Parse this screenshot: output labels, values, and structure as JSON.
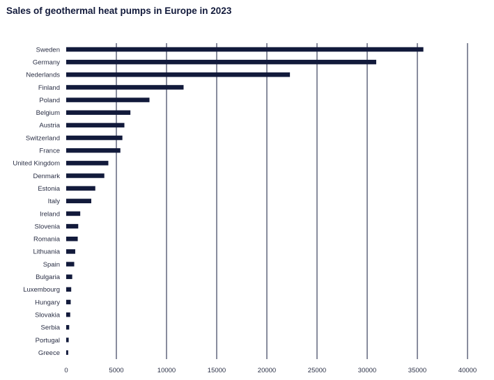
{
  "chart_data": {
    "type": "bar",
    "orientation": "horizontal",
    "title": "Sales of geothermal heat pumps in Europe in 2023",
    "xlabel": "",
    "ylabel": "",
    "xlim": [
      0,
      40000
    ],
    "xticks": [
      0,
      5000,
      10000,
      15000,
      20000,
      25000,
      30000,
      35000,
      40000
    ],
    "grid": true,
    "bar_color": "#121a3b",
    "grid_color": "#121a3b",
    "categories": [
      "Sweden",
      "Germany",
      "Nederlands",
      "Finland",
      "Poland",
      "Belgium",
      "Austria",
      "Switzerland",
      "France",
      "United Kingdom",
      "Denmark",
      "Estonia",
      "Italy",
      "Ireland",
      "Slovenia",
      "Romania",
      "Lithuania",
      "Spain",
      "Bulgaria",
      "Luxembourg",
      "Hungary",
      "Slovakia",
      "Serbia",
      "Portugal",
      "Greece"
    ],
    "values": [
      35600,
      30900,
      22300,
      11700,
      8300,
      6400,
      5800,
      5600,
      5400,
      4200,
      3800,
      2900,
      2500,
      1400,
      1200,
      1150,
      900,
      800,
      600,
      500,
      450,
      400,
      300,
      250,
      200
    ]
  }
}
